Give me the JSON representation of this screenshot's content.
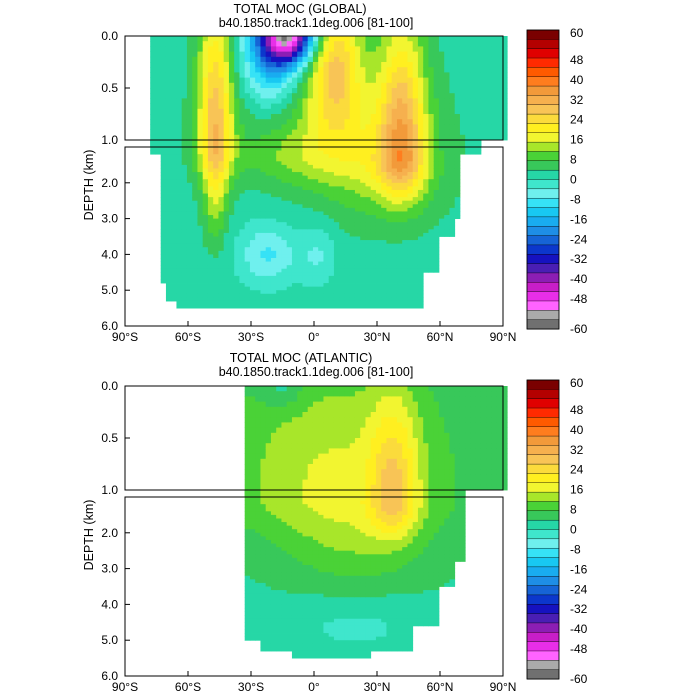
{
  "chart_data": [
    {
      "type": "heatmap",
      "id": "global",
      "title": "TOTAL MOC (GLOBAL)",
      "subtitle": "b40.1850.track1.1deg.006 [81-100]",
      "ylabel": "DEPTH (km)",
      "xlim": [
        -90,
        90
      ],
      "ylim_upper": [
        0.0,
        1.0
      ],
      "ylim_lower": [
        1.0,
        6.0
      ],
      "xticks": [
        "90°S",
        "60°S",
        "30°S",
        "0°",
        "30°N",
        "60°N",
        "90°N"
      ],
      "yticks_upper": [
        "0.0",
        "0.5",
        "1.0"
      ],
      "yticks_lower": [
        "2.0",
        "3.0",
        "4.0",
        "5.0",
        "6.0"
      ],
      "lat_range": [
        -78,
        90
      ],
      "features": [
        {
          "name": "southern-deacon-cell",
          "lat": -47,
          "depth": 0.7,
          "peak": 26
        },
        {
          "name": "tropical-southern-cell",
          "lat": -12,
          "depth": 0.05,
          "peak": -48
        },
        {
          "name": "tropical-northern-cell",
          "lat": 8,
          "depth": 0.25,
          "peak": 22
        },
        {
          "name": "amoc-cell",
          "lat": 42,
          "depth": 1.0,
          "peak": 28
        },
        {
          "name": "aabw-cell",
          "lat": -22,
          "depth": 4.0,
          "peak": -10
        }
      ]
    },
    {
      "type": "heatmap",
      "id": "atlantic",
      "title": "TOTAL MOC (ATLANTIC)",
      "subtitle": "b40.1850.track1.1deg.006 [81-100]",
      "ylabel": "DEPTH (km)",
      "xlim": [
        -90,
        90
      ],
      "ylim_upper": [
        0.0,
        1.0
      ],
      "ylim_lower": [
        1.0,
        6.0
      ],
      "xticks": [
        "90°S",
        "60°S",
        "30°S",
        "0°",
        "30°N",
        "60°N",
        "90°N"
      ],
      "yticks_upper": [
        "0.0",
        "0.5",
        "1.0"
      ],
      "yticks_lower": [
        "2.0",
        "3.0",
        "4.0",
        "5.0",
        "6.0"
      ],
      "lat_range": [
        -33,
        90
      ],
      "features": [
        {
          "name": "amoc-cell",
          "lat": 38,
          "depth": 1.1,
          "peak": 26
        },
        {
          "name": "surface-cell",
          "lat": -15,
          "depth": 0.05,
          "peak": -6
        }
      ]
    }
  ],
  "colorbar": {
    "min": -60,
    "max": 60,
    "labels": [
      "60",
      "48",
      "40",
      "32",
      "24",
      "16",
      "8",
      "0",
      "-8",
      "-16",
      "-24",
      "-32",
      "-40",
      "-48",
      "-60"
    ],
    "colors": [
      "#7a0000",
      "#b40000",
      "#e00000",
      "#ff2a00",
      "#ff5a00",
      "#ff7d1e",
      "#f29a3a",
      "#f6b04e",
      "#f8c456",
      "#fbdb3c",
      "#ffef20",
      "#f2f530",
      "#a8e62a",
      "#4ad237",
      "#38c85a",
      "#26d7a6",
      "#3fe6cc",
      "#6ff0ee",
      "#36e2f6",
      "#18c8f2",
      "#19acf0",
      "#1e8ee6",
      "#1664d6",
      "#0c37cc",
      "#1612c0",
      "#4a1eb4",
      "#8c1eb4",
      "#c81ec8",
      "#e82ee8",
      "#ff63ff",
      "#aaaaaa",
      "#707070"
    ]
  }
}
